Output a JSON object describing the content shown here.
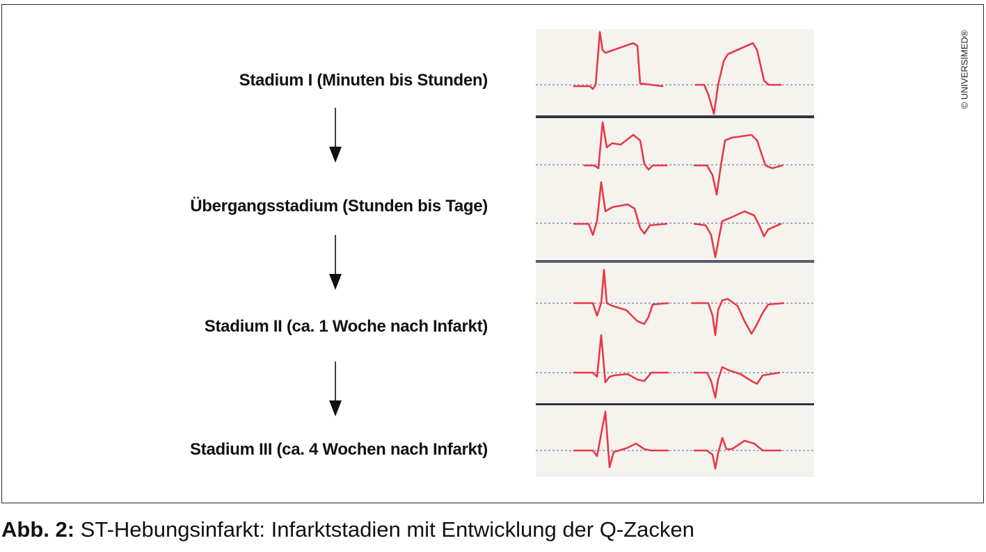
{
  "stages": [
    {
      "label": "Stadium I (Minuten bis Stunden)"
    },
    {
      "label": "Übergangsstadium (Stunden bis Tage)"
    },
    {
      "label": "Stadium II (ca. 1 Woche nach Infarkt)"
    },
    {
      "label": "Stadium III (ca. 4 Wochen nach Infarkt)"
    }
  ],
  "copyright": "© UNIVERSIMED®",
  "caption": {
    "prefix": "Abb. 2:",
    "text": " ST-Hebungsinfarkt: Infarktstadien mit Entwicklung der Q-Zacken"
  },
  "colors": {
    "trace": "#e83848",
    "baseline": "#8c93b8",
    "separator": "#2e3440",
    "panel_background": "#f5f3ee",
    "frame": "#2a2a2a",
    "text": "#111111"
  },
  "icons": [
    "arrow-down-icon"
  ]
}
